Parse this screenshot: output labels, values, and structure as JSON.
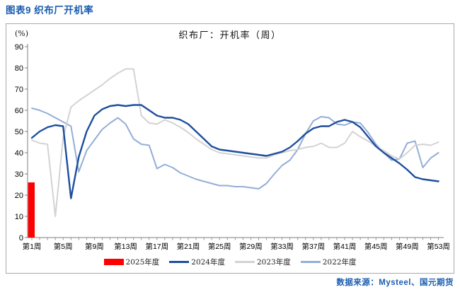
{
  "header": {
    "title": "图表9 织布厂开机率"
  },
  "chart": {
    "title": "织布厂：开机率（周）",
    "y_unit_label": "(%)"
  },
  "legend": {
    "items": [
      {
        "key": "2025",
        "label": "2025年度",
        "type": "bar",
        "color": "#fe0000"
      },
      {
        "key": "2024",
        "label": "2024年度",
        "type": "line",
        "color": "#1d4e9e"
      },
      {
        "key": "2023",
        "label": "2023年度",
        "type": "line",
        "color": "#d3d3d3"
      },
      {
        "key": "2022",
        "label": "2022年度",
        "type": "line",
        "color": "#94aed6"
      }
    ]
  },
  "footer": {
    "source": "数据来源：Mysteel、国元期货"
  },
  "chart_data": {
    "type": "line+bar",
    "title": "织布厂：开机率（周）",
    "ylabel": "(%)",
    "ylim": [
      0,
      90
    ],
    "y_ticks": [
      0,
      10,
      20,
      30,
      40,
      50,
      60,
      70,
      80,
      90
    ],
    "weeks_total": 53,
    "x_label_weeks": [
      1,
      5,
      9,
      13,
      17,
      21,
      25,
      29,
      33,
      37,
      41,
      45,
      49,
      53
    ],
    "x_label_texts": [
      "第1周",
      "第5周",
      "第9周",
      "第13周",
      "第17周",
      "第21周",
      "第25周",
      "第29周",
      "第33周",
      "第37周",
      "第41周",
      "第45周",
      "第49周",
      "第53周"
    ],
    "bar_series": {
      "name": "2025年度",
      "color": "#fe0000",
      "points": [
        {
          "week": 1,
          "value": 26
        }
      ]
    },
    "series": [
      {
        "name": "2024年度",
        "color": "#1d4e9e",
        "width": 2.4,
        "values": [
          47,
          50,
          52,
          53,
          52.5,
          18.5,
          38,
          50,
          57.5,
          60.5,
          62,
          62.5,
          62,
          62.5,
          62.5,
          60,
          57.5,
          56.5,
          56.5,
          55.5,
          53.5,
          50,
          46.5,
          43,
          41.5,
          41,
          40.5,
          40,
          39.5,
          39,
          38.5,
          39.5,
          40.5,
          42.5,
          45.5,
          49,
          51.5,
          52.5,
          52.5,
          54.5,
          55.5,
          54.5,
          52,
          47.5,
          43,
          40,
          37.5,
          35,
          32,
          28.5,
          27.5,
          27,
          26.5
        ]
      },
      {
        "name": "2023年度",
        "color": "#d3d3d3",
        "width": 2,
        "values": [
          46,
          44.5,
          44,
          10,
          47,
          61.5,
          64.5,
          67,
          69.5,
          72,
          75,
          77.5,
          79.5,
          79.5,
          57.5,
          54,
          53.5,
          55.5,
          54,
          52,
          49.5,
          46.5,
          44,
          41.5,
          40,
          39.5,
          39,
          38.5,
          38,
          37.5,
          37.5,
          39,
          40,
          41,
          41.5,
          42.5,
          43,
          44.5,
          42.5,
          42.5,
          44.5,
          50,
          47.5,
          45.5,
          43,
          41,
          38.5,
          37,
          40,
          43.5,
          44,
          43.5,
          45
        ]
      },
      {
        "name": "2022年度",
        "color": "#94aed6",
        "width": 2,
        "values": [
          61,
          60,
          58.5,
          56.5,
          54.5,
          52.5,
          31,
          41,
          46,
          51,
          54,
          56.5,
          53.5,
          46.5,
          44,
          43.5,
          32.5,
          34.5,
          33,
          30.5,
          29,
          27.5,
          26.5,
          25.5,
          24.5,
          24.5,
          24,
          24,
          23.5,
          23,
          25.5,
          30,
          34,
          36.5,
          41.5,
          49,
          55,
          57,
          56.5,
          53.5,
          53,
          54.5,
          54,
          49.5,
          44,
          40,
          36.5,
          37,
          44.5,
          45.5,
          33,
          37.5,
          40
        ]
      }
    ]
  }
}
